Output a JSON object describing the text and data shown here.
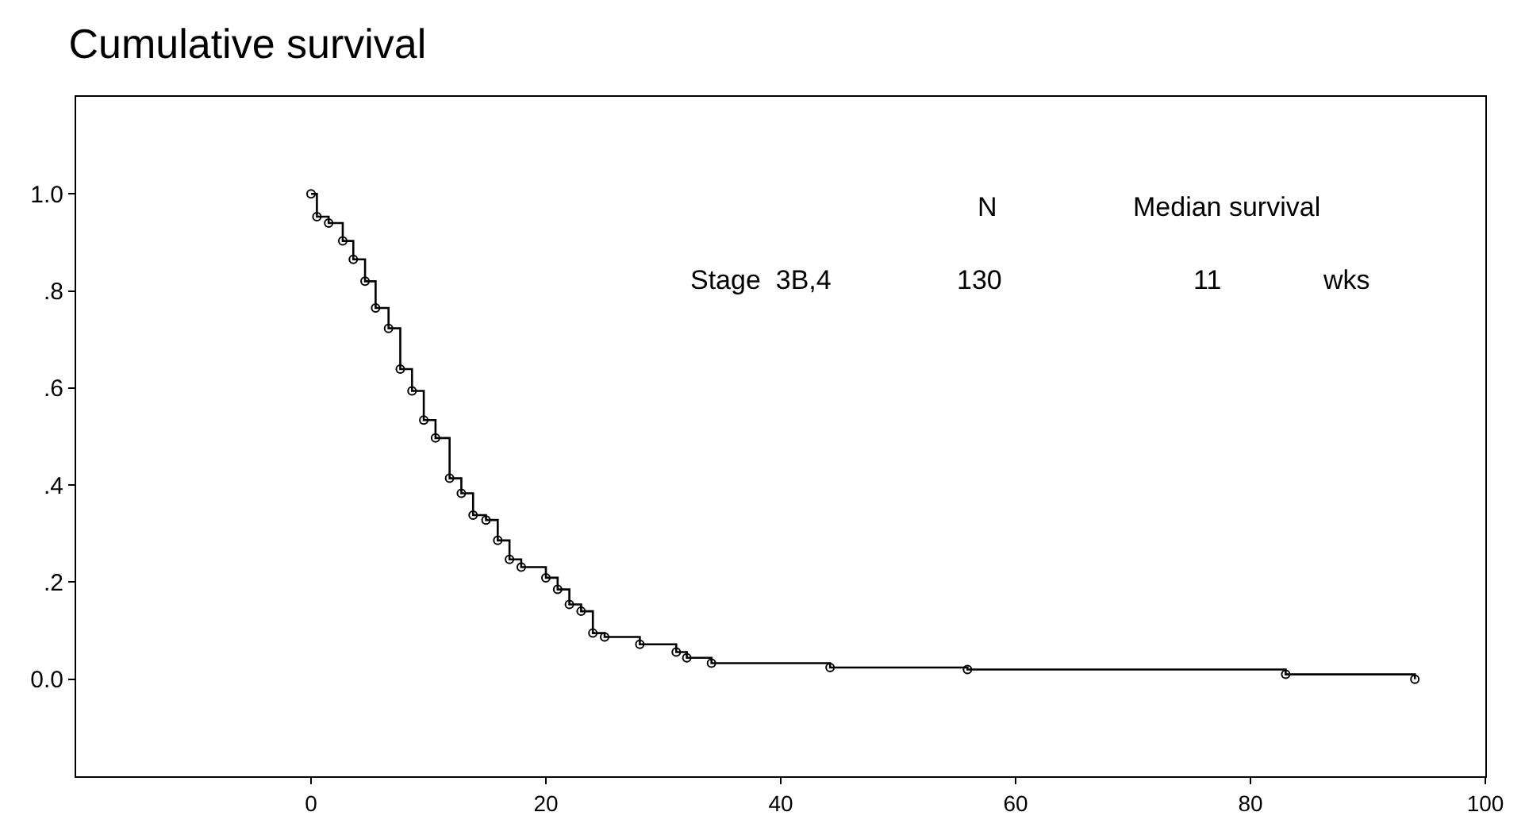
{
  "chart_data": {
    "type": "step",
    "title": "Cumulative survival",
    "x": [
      0,
      0.5,
      1.5,
      2.7,
      3.6,
      4.6,
      5.5,
      6.6,
      7.6,
      8.6,
      9.6,
      10.6,
      11.8,
      12.8,
      13.8,
      14.9,
      15.9,
      16.9,
      17.9,
      20.0,
      21.0,
      22.0,
      23.0,
      24.0,
      25.0,
      28.0,
      31.1,
      32.0,
      34.1,
      44.2,
      55.9,
      83.0,
      94.0
    ],
    "series": [
      {
        "color": "#000000",
        "values": [
          1.0,
          0.953,
          0.94,
          0.903,
          0.865,
          0.82,
          0.765,
          0.723,
          0.639,
          0.594,
          0.534,
          0.497,
          0.414,
          0.383,
          0.338,
          0.328,
          0.286,
          0.247,
          0.231,
          0.209,
          0.185,
          0.154,
          0.14,
          0.095,
          0.087,
          0.072,
          0.056,
          0.044,
          0.033,
          0.024,
          0.02,
          0.01,
          0.0
        ]
      }
    ],
    "xlim": [
      -20,
      100
    ],
    "xticks": [
      0,
      20,
      40,
      60,
      80,
      100
    ],
    "ylim": [
      -0.2,
      1.2
    ],
    "yticks": [
      {
        "value": 0,
        "label": "0.0"
      },
      {
        "value": 0.2,
        "label": ".2"
      },
      {
        "value": 0.4,
        "label": ".4"
      },
      {
        "value": 0.6,
        "label": ".6"
      },
      {
        "value": 0.8,
        "label": ".8"
      },
      {
        "value": 1,
        "label": "1.0"
      }
    ],
    "marker": "circle",
    "line_style": "solid",
    "annotations": [
      "N",
      "Median survival",
      "Stage  3B,4",
      "130",
      "11",
      "wks"
    ]
  }
}
